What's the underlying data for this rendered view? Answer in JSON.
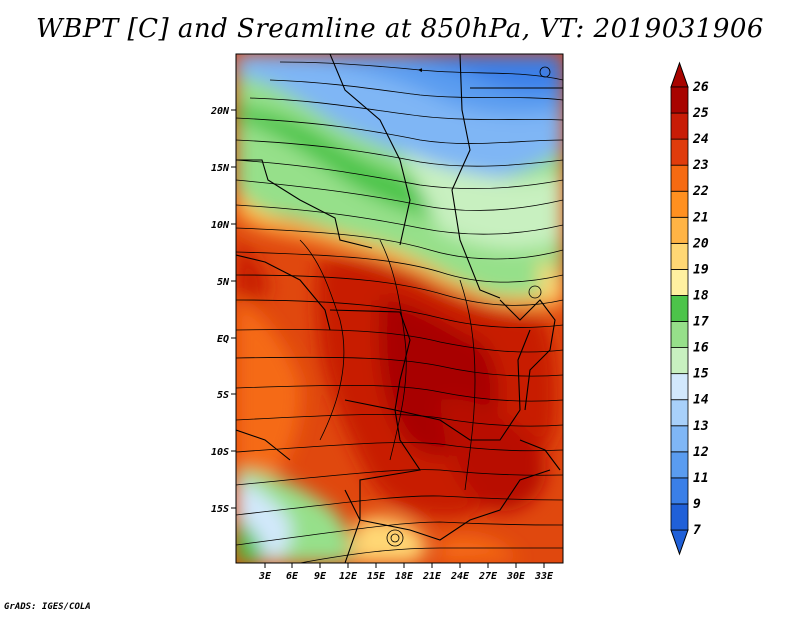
{
  "title": "WBPT [C] and Sreamline at 850hPa, VT: 2019031906",
  "footer": "GrADS: IGES/COLA",
  "map": {
    "lat_ticks": [
      "20N",
      "15N",
      "10N",
      "5N",
      "EQ",
      "5S",
      "10S",
      "15S"
    ],
    "lon_ticks": [
      "3E",
      "6E",
      "9E",
      "12E",
      "15E",
      "18E",
      "21E",
      "24E",
      "27E",
      "30E",
      "33E"
    ]
  },
  "colorbar": {
    "labels": [
      "7",
      "9",
      "11",
      "12",
      "13",
      "14",
      "15",
      "16",
      "17",
      "18",
      "19",
      "20",
      "21",
      "22",
      "23",
      "24",
      "25",
      "26"
    ],
    "colors": [
      "#2060d8",
      "#3a7fe8",
      "#5a9cf0",
      "#7fb6f5",
      "#a8d0fa",
      "#d2e8fc",
      "#c8f0c0",
      "#96e08a",
      "#4cc44a",
      "#fff0a0",
      "#ffd774",
      "#ffb445",
      "#ff9020",
      "#f56a12",
      "#e03c0c",
      "#c81c06",
      "#a80400"
    ]
  }
}
